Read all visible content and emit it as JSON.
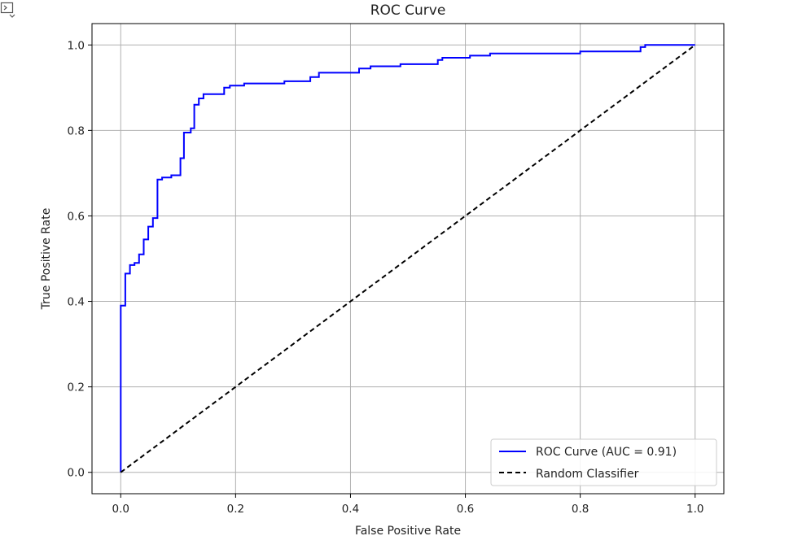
{
  "ui": {
    "output_toggle_icon": "expand-output-icon"
  },
  "chart_data": {
    "type": "line",
    "title": "ROC Curve",
    "xlabel": "False Positive Rate",
    "ylabel": "True Positive Rate",
    "xlim": [
      -0.05,
      1.05
    ],
    "ylim": [
      -0.05,
      1.05
    ],
    "x_ticks": [
      "0.0",
      "0.2",
      "0.4",
      "0.6",
      "0.8",
      "1.0"
    ],
    "y_ticks": [
      "0.0",
      "0.2",
      "0.4",
      "0.6",
      "0.8",
      "1.0"
    ],
    "x_tick_values": [
      0.0,
      0.2,
      0.4,
      0.6,
      0.8,
      1.0
    ],
    "y_tick_values": [
      0.0,
      0.2,
      0.4,
      0.6,
      0.8,
      1.0
    ],
    "grid": true,
    "legend_position": "bottom-right",
    "series": [
      {
        "name": "ROC Curve (AUC = 0.91)",
        "color": "#0000ff",
        "style": "solid",
        "x": [
          0.0,
          0.0,
          0.008,
          0.008,
          0.016,
          0.016,
          0.024,
          0.024,
          0.032,
          0.032,
          0.04,
          0.04,
          0.048,
          0.048,
          0.056,
          0.056,
          0.064,
          0.064,
          0.072,
          0.072,
          0.088,
          0.088,
          0.104,
          0.104,
          0.11,
          0.11,
          0.122,
          0.122,
          0.128,
          0.128,
          0.136,
          0.136,
          0.144,
          0.144,
          0.18,
          0.18,
          0.19,
          0.19,
          0.215,
          0.215,
          0.285,
          0.285,
          0.33,
          0.33,
          0.345,
          0.345,
          0.415,
          0.415,
          0.435,
          0.435,
          0.487,
          0.487,
          0.552,
          0.552,
          0.56,
          0.56,
          0.608,
          0.608,
          0.643,
          0.643,
          0.8,
          0.8,
          0.905,
          0.905,
          0.913,
          0.913,
          1.0
        ],
        "y": [
          0.0,
          0.39,
          0.39,
          0.465,
          0.465,
          0.485,
          0.485,
          0.49,
          0.49,
          0.51,
          0.51,
          0.545,
          0.545,
          0.575,
          0.575,
          0.595,
          0.595,
          0.685,
          0.685,
          0.69,
          0.69,
          0.695,
          0.695,
          0.735,
          0.735,
          0.795,
          0.795,
          0.805,
          0.805,
          0.86,
          0.86,
          0.875,
          0.875,
          0.885,
          0.885,
          0.9,
          0.9,
          0.905,
          0.905,
          0.91,
          0.91,
          0.915,
          0.915,
          0.925,
          0.925,
          0.935,
          0.935,
          0.945,
          0.945,
          0.95,
          0.95,
          0.955,
          0.955,
          0.965,
          0.965,
          0.97,
          0.97,
          0.975,
          0.975,
          0.98,
          0.98,
          0.985,
          0.985,
          0.995,
          0.995,
          1.0,
          1.0
        ]
      },
      {
        "name": "Random Classifier",
        "color": "#000000",
        "style": "dashed",
        "x": [
          0.0,
          1.0
        ],
        "y": [
          0.0,
          1.0
        ]
      }
    ]
  }
}
